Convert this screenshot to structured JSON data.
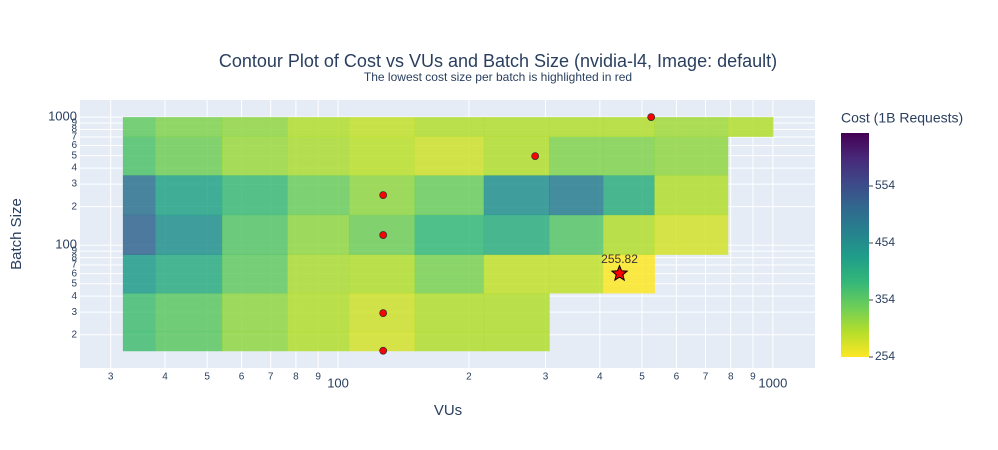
{
  "chart_data": {
    "type": "contour",
    "title": "Contour Plot of Cost vs VUs and Batch Size (nvidia-l4, Image: default)",
    "subtitle": "The lowest cost size per batch is highlighted in red",
    "x_label": "VUs",
    "y_label": "Batch Size",
    "colorbar_title": "Cost (1B Requests)",
    "x_log": true,
    "y_log": true,
    "grid": true,
    "xlim": [
      25.5,
      1250
    ],
    "ylim": [
      11,
      1360
    ],
    "xticks": [
      {
        "value": 30,
        "label": "3"
      },
      {
        "value": 40,
        "label": "4"
      },
      {
        "value": 50,
        "label": "5"
      },
      {
        "value": 60,
        "label": "6"
      },
      {
        "value": 70,
        "label": "7"
      },
      {
        "value": 80,
        "label": "8"
      },
      {
        "value": 90,
        "label": "9"
      },
      100,
      {
        "value": 200,
        "label": "2"
      },
      {
        "value": 300,
        "label": "3"
      },
      {
        "value": 400,
        "label": "4"
      },
      {
        "value": 500,
        "label": "5"
      },
      {
        "value": 600,
        "label": "6"
      },
      {
        "value": 700,
        "label": "7"
      },
      {
        "value": 800,
        "label": "8"
      },
      {
        "value": 900,
        "label": "9"
      },
      1000
    ],
    "yticks": [
      {
        "value": 20,
        "label": "2"
      },
      {
        "value": 30,
        "label": "3"
      },
      {
        "value": 40,
        "label": "4"
      },
      {
        "value": 50,
        "label": "5"
      },
      {
        "value": 60,
        "label": "6"
      },
      {
        "value": 70,
        "label": "7"
      },
      {
        "value": 80,
        "label": "8"
      },
      {
        "value": 90,
        "label": "9"
      },
      100,
      {
        "value": 200,
        "label": "2"
      },
      {
        "value": 300,
        "label": "3"
      },
      {
        "value": 400,
        "label": "4"
      },
      {
        "value": 500,
        "label": "5"
      },
      {
        "value": 600,
        "label": "6"
      },
      {
        "value": 700,
        "label": "7"
      },
      {
        "value": 800,
        "label": "8"
      },
      {
        "value": 900,
        "label": "9"
      },
      1000
    ],
    "zlim": [
      254,
      647
    ],
    "zticks": [
      254,
      354,
      454,
      554
    ],
    "colorscale": [
      "#fde725",
      "#b5de2b",
      "#6ece58",
      "#35b779",
      "#1f9e89",
      "#26828e",
      "#31688e",
      "#3e4989",
      "#482878",
      "#440154"
    ],
    "x": [
      32,
      45,
      65,
      90,
      125,
      180,
      260,
      360,
      460,
      620,
      1000
    ],
    "y": [
      15,
      30,
      60,
      120,
      250,
      500,
      1000
    ],
    "z": [
      [
        374,
        354,
        320,
        300,
        280,
        300,
        300,
        null,
        null,
        null,
        null
      ],
      [
        374,
        354,
        320,
        300,
        284,
        300,
        300,
        null,
        null,
        null,
        null
      ],
      [
        434,
        404,
        350,
        304,
        300,
        334,
        290,
        290,
        254,
        null,
        null
      ],
      [
        520,
        450,
        360,
        320,
        340,
        384,
        400,
        360,
        300,
        280,
        null
      ],
      [
        500,
        420,
        380,
        344,
        320,
        344,
        450,
        480,
        400,
        300,
        null
      ],
      [
        364,
        340,
        314,
        304,
        294,
        284,
        300,
        330,
        330,
        320,
        null
      ],
      [
        350,
        330,
        320,
        300,
        290,
        300,
        300,
        300,
        300,
        310,
        300
      ]
    ],
    "highlight_color": "#ff0000",
    "highlights": {
      "x": [
        127,
        127,
        127,
        127,
        284,
        525
      ],
      "y": [
        15,
        29.5,
        120,
        246,
        496,
        1000
      ]
    },
    "best": {
      "x": 444,
      "y": 60,
      "value": 255.82
    }
  }
}
